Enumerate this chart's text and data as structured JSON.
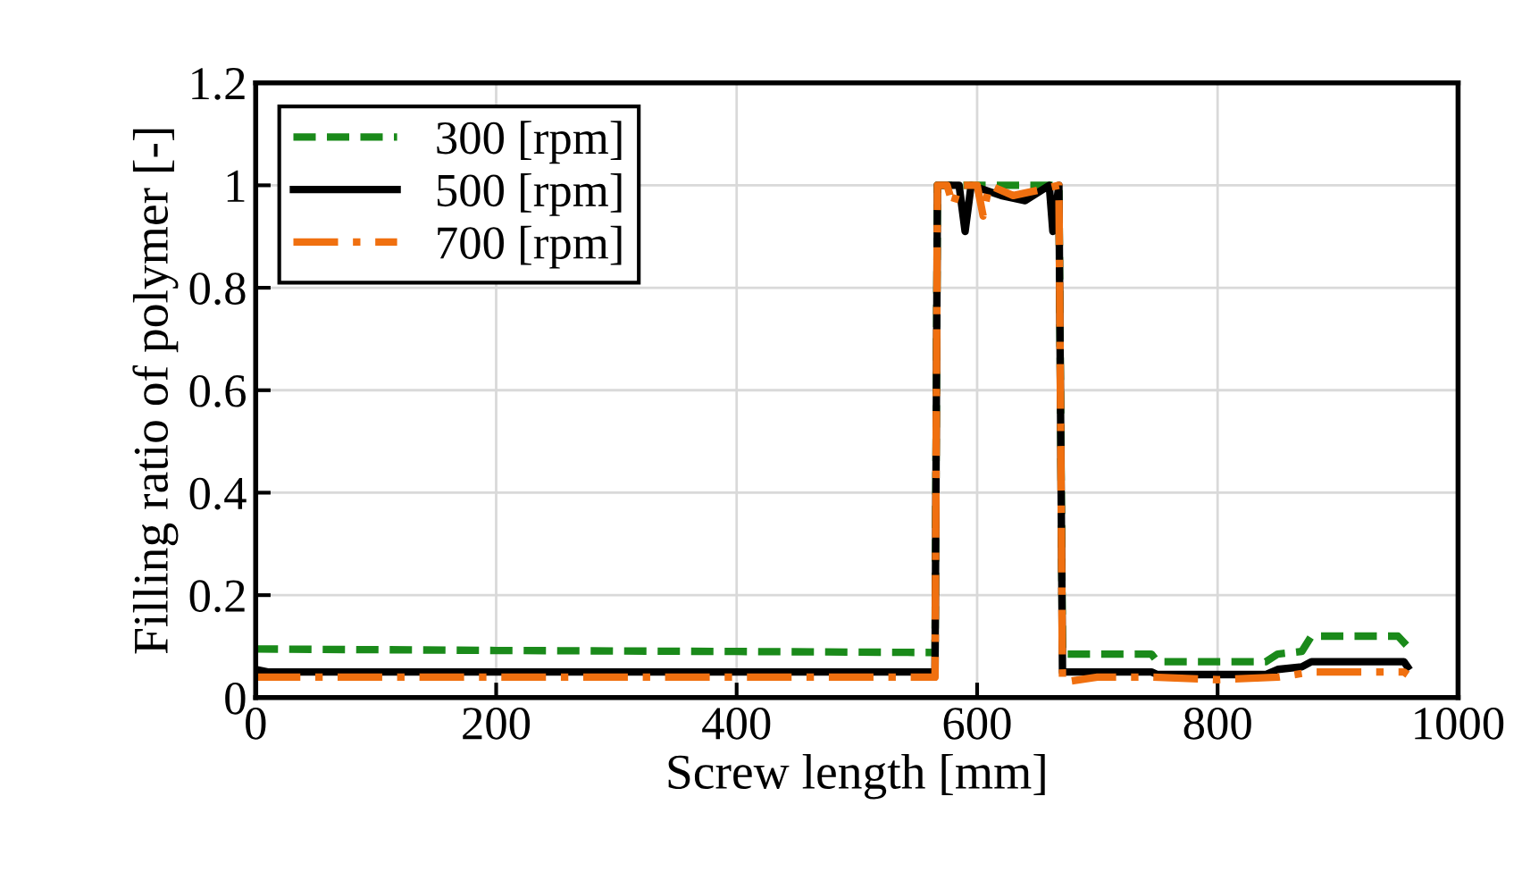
{
  "chart_data": {
    "type": "line",
    "xlabel": "Screw length [mm]",
    "ylabel": "Filling ratio of polymer [-]",
    "xlim": [
      0,
      1000
    ],
    "xticks": [
      0,
      200,
      400,
      600,
      800,
      1000
    ],
    "ylim": [
      0,
      1.2
    ],
    "yticks": [
      0,
      0.2,
      0.4,
      0.6,
      0.8,
      1,
      1.2
    ],
    "grid": true,
    "legend": "top left",
    "series": [
      {
        "name": "300 [rpm]",
        "color": "#1a8a1a",
        "line_style": "dashed",
        "x": [
          0,
          200,
          400,
          565,
          567,
          600,
          640,
          668,
          671,
          700,
          745,
          750,
          840,
          850,
          870,
          878,
          950,
          958
        ],
        "values": [
          0.095,
          0.092,
          0.09,
          0.088,
          1.0,
          1.0,
          1.0,
          1.0,
          0.085,
          0.085,
          0.085,
          0.07,
          0.07,
          0.085,
          0.09,
          0.12,
          0.12,
          0.1
        ]
      },
      {
        "name": "500 [rpm]",
        "color": "#000000",
        "line_style": "solid",
        "x": [
          0,
          10,
          565,
          567,
          585,
          590,
          595,
          620,
          640,
          660,
          663,
          668,
          671,
          745,
          750,
          840,
          850,
          870,
          878,
          955,
          958
        ],
        "values": [
          0.055,
          0.05,
          0.05,
          1.0,
          1.0,
          0.91,
          1.0,
          0.98,
          0.97,
          1.0,
          0.91,
          1.0,
          0.05,
          0.05,
          0.045,
          0.045,
          0.055,
          0.06,
          0.07,
          0.07,
          0.06
        ]
      },
      {
        "name": "700 [rpm]",
        "color": "#f07010",
        "line_style": "dashdot",
        "x": [
          0,
          200,
          400,
          565,
          567,
          575,
          580,
          585,
          600,
          605,
          610,
          630,
          650,
          668,
          671,
          700,
          745,
          800,
          850,
          878,
          955,
          958
        ],
        "values": [
          0.04,
          0.04,
          0.04,
          0.04,
          1.0,
          1.0,
          0.96,
          1.0,
          1.0,
          0.94,
          1.0,
          0.98,
          0.99,
          1.0,
          0.03,
          0.04,
          0.04,
          0.035,
          0.04,
          0.05,
          0.05,
          0.045
        ]
      }
    ]
  }
}
